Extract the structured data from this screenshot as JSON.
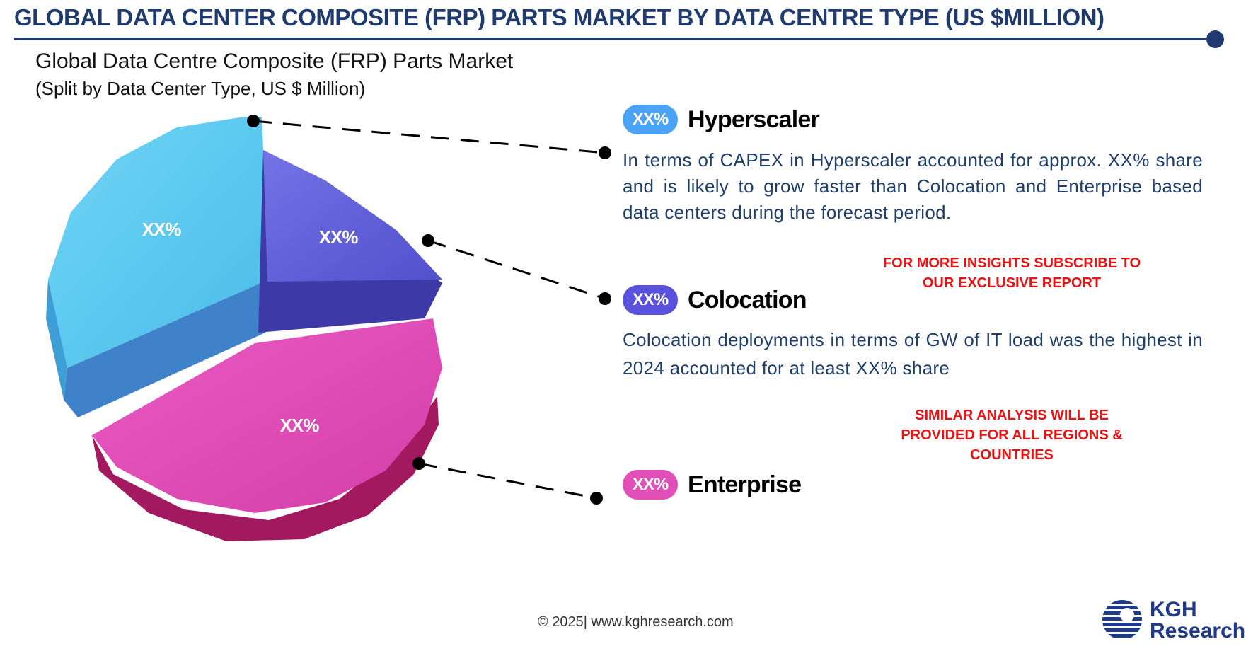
{
  "header": {
    "title": "GLOBAL DATA CENTER COMPOSITE (FRP) PARTS MARKET BY DATA CENTRE TYPE (US $MILLION)"
  },
  "chart_data": {
    "type": "pie",
    "title": "Global Data Centre Composite (FRP) Parts Market",
    "subtitle": "(Split by Data Center Type, US $ Million)",
    "slice_labels": [
      "XX%",
      "XX%",
      "XX%"
    ],
    "legend": [
      {
        "name": "Hyperscaler",
        "value_label": "XX%",
        "color": "#5ec8ec"
      },
      {
        "name": "Colocation",
        "value_label": "XX%",
        "color": "#6563dd"
      },
      {
        "name": "Enterprise",
        "value_label": "XX%",
        "color": "#e24fb8"
      }
    ]
  },
  "descriptions": {
    "hyperscaler": "In terms of CAPEX in Hyperscaler accounted for approx. XX% share and is likely to grow faster than Colocation and Enterprise based data centers during the forecast period.",
    "colocation": "Colocation deployments in terms of GW of IT load was the highest in 2024 accounted for at least XX% share"
  },
  "promos": {
    "subscribe": "FOR MORE INSIGHTS SUBSCRIBE TO OUR EXCLUSIVE REPORT",
    "similar": "SIMILAR ANALYSIS WILL BE PROVIDED FOR ALL REGIONS & COUNTRIES"
  },
  "footer": {
    "text": "© 2025| www.kghresearch.com"
  },
  "logo": {
    "line1": "KGH",
    "line2": "Research"
  }
}
